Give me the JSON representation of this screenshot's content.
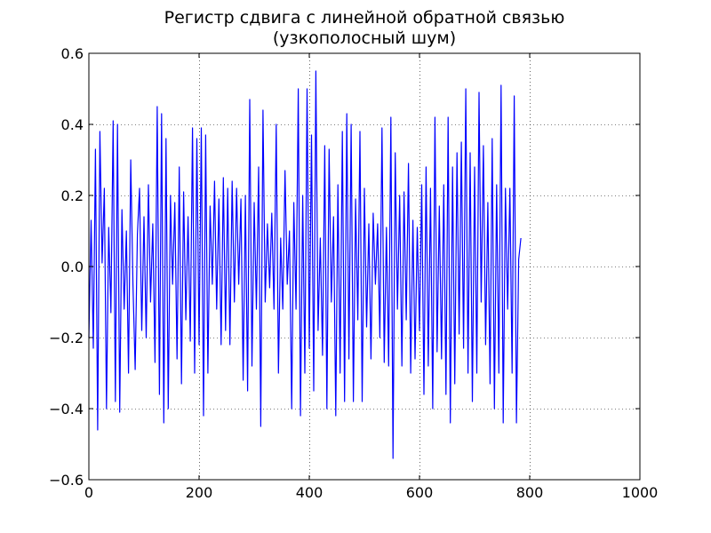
{
  "chart_data": {
    "type": "line",
    "title_lines": [
      "Регистр сдвига с линейной обратной связью",
      "(узкополосный шум)"
    ],
    "xlabel": "",
    "ylabel": "",
    "xlim": [
      0,
      1000
    ],
    "ylim": [
      -0.6,
      0.6
    ],
    "x_ticks": [
      0,
      200,
      400,
      600,
      800,
      1000
    ],
    "x_tick_labels": [
      "0",
      "200",
      "400",
      "600",
      "800",
      "1000"
    ],
    "y_ticks": [
      -0.6,
      -0.4,
      -0.2,
      0.0,
      0.2,
      0.4,
      0.6
    ],
    "y_tick_labels": [
      "−0.6",
      "−0.4",
      "−0.2",
      "0.0",
      "0.2",
      "0.4",
      "0.6"
    ],
    "grid": true,
    "line_color": "#0000ff",
    "series": [
      {
        "x_start": 0,
        "x_step": 4,
        "values": [
          -0.2,
          0.13,
          -0.23,
          0.33,
          -0.46,
          0.38,
          0.01,
          0.22,
          -0.4,
          0.11,
          -0.13,
          0.41,
          -0.38,
          0.4,
          -0.41,
          0.16,
          -0.12,
          0.1,
          -0.3,
          0.3,
          -0.05,
          -0.29,
          0.09,
          0.22,
          -0.18,
          0.14,
          -0.2,
          0.23,
          -0.1,
          0.12,
          -0.27,
          0.45,
          -0.36,
          0.43,
          -0.44,
          0.36,
          -0.4,
          0.2,
          -0.05,
          0.18,
          -0.26,
          0.28,
          -0.33,
          0.21,
          -0.15,
          0.14,
          -0.21,
          0.39,
          -0.3,
          0.36,
          -0.22,
          0.39,
          -0.42,
          0.37,
          -0.3,
          0.17,
          -0.05,
          0.24,
          -0.12,
          0.19,
          -0.22,
          0.25,
          -0.18,
          0.22,
          -0.22,
          0.24,
          -0.1,
          0.22,
          -0.05,
          0.19,
          -0.32,
          0.2,
          -0.35,
          0.47,
          -0.28,
          0.18,
          -0.12,
          0.28,
          -0.45,
          0.44,
          -0.1,
          0.12,
          -0.06,
          0.15,
          -0.12,
          0.4,
          -0.3,
          0.08,
          -0.12,
          0.27,
          -0.05,
          0.1,
          -0.4,
          0.18,
          -0.12,
          0.5,
          -0.42,
          0.2,
          -0.3,
          0.5,
          -0.23,
          0.37,
          -0.35,
          0.55,
          -0.18,
          0.08,
          -0.25,
          0.34,
          -0.4,
          0.33,
          -0.1,
          0.14,
          -0.42,
          0.23,
          -0.3,
          0.38,
          -0.38,
          0.43,
          -0.26,
          0.4,
          -0.38,
          0.19,
          -0.15,
          0.38,
          -0.38,
          0.22,
          -0.17,
          0.12,
          -0.26,
          0.15,
          -0.05,
          0.12,
          -0.2,
          0.39,
          -0.27,
          0.11,
          -0.28,
          0.42,
          -0.54,
          0.32,
          -0.12,
          0.2,
          -0.28,
          0.21,
          -0.15,
          0.29,
          -0.3,
          0.13,
          -0.26,
          0.11,
          -0.18,
          0.23,
          -0.36,
          0.28,
          -0.28,
          0.22,
          -0.4,
          0.42,
          -0.24,
          0.17,
          -0.26,
          0.23,
          -0.36,
          0.42,
          -0.44,
          0.28,
          -0.33,
          0.32,
          -0.19,
          0.35,
          -0.23,
          0.5,
          -0.3,
          0.32,
          -0.38,
          0.28,
          -0.3,
          0.49,
          -0.1,
          0.34,
          -0.22,
          0.18,
          -0.33,
          0.36,
          -0.4,
          0.23,
          -0.3,
          0.51,
          -0.44,
          0.22,
          -0.12,
          0.22,
          -0.3,
          0.48,
          -0.44,
          0.02,
          0.08
        ]
      }
    ]
  }
}
